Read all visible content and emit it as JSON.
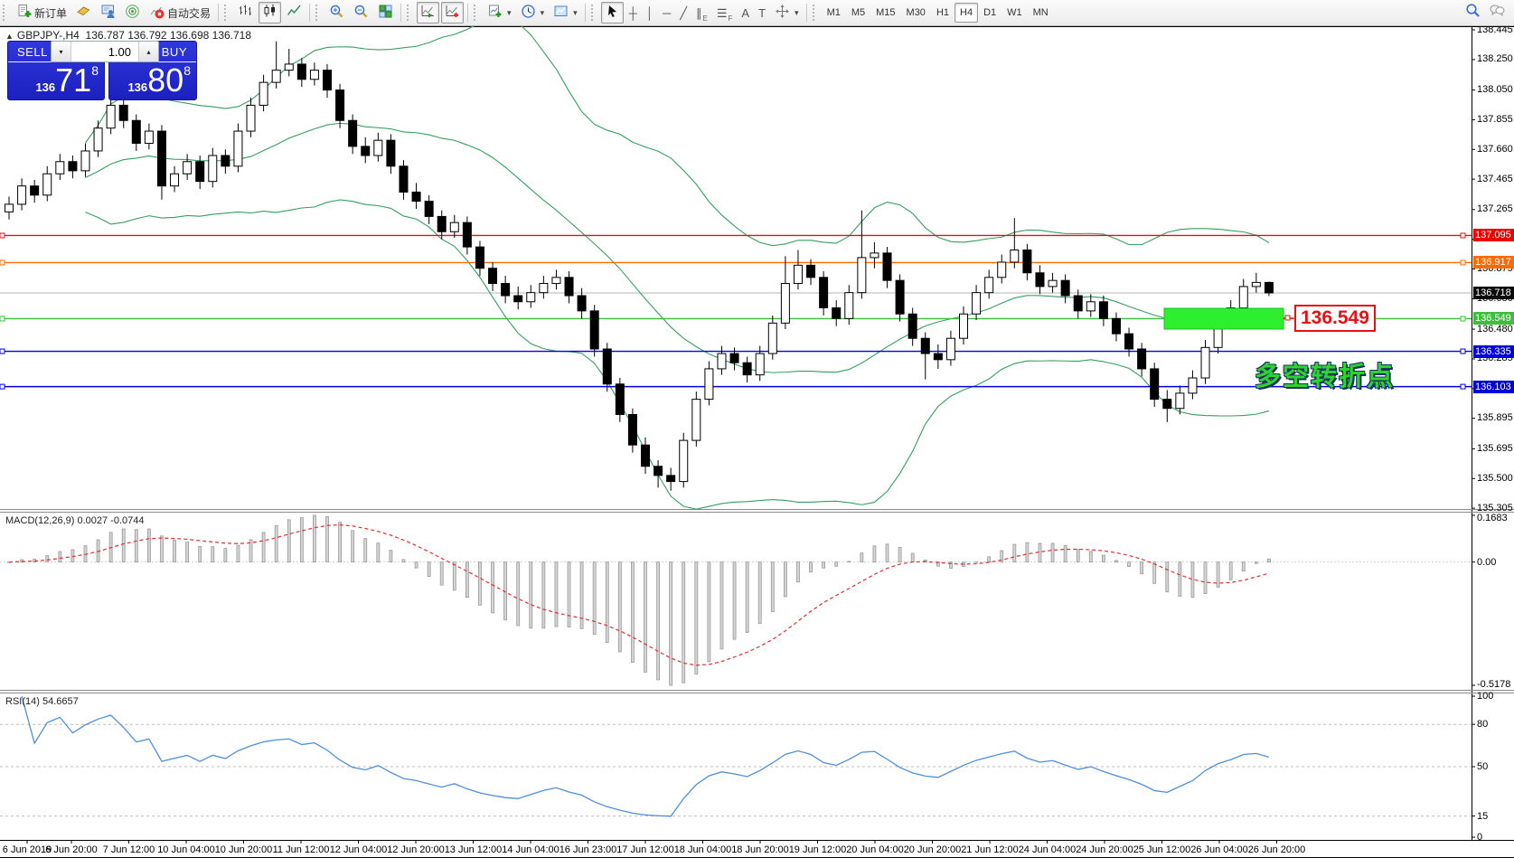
{
  "toolbar": {
    "caret": "▾",
    "up_glyph": "▴",
    "down_glyph": "▾",
    "groups": [
      {
        "items": [
          {
            "name": "new-order-button",
            "icon": "doc-plus",
            "label": "新订单"
          },
          {
            "name": "market-watch-button",
            "icon": "gold-box"
          },
          {
            "name": "data-window-button",
            "icon": "person-board"
          },
          {
            "name": "signals-button",
            "icon": "radio"
          },
          {
            "name": "autotrading-button",
            "icon": "autotrade",
            "label": "自动交易"
          }
        ]
      },
      {
        "items": [
          {
            "name": "bar-chart-button",
            "icon": "bars"
          },
          {
            "name": "candlestick-chart-button",
            "icon": "candles",
            "pressed": true
          },
          {
            "name": "line-chart-button",
            "icon": "linechart"
          }
        ]
      },
      {
        "items": [
          {
            "name": "zoom-in-button",
            "icon": "zoom-in"
          },
          {
            "name": "zoom-out-button",
            "icon": "zoom-out"
          },
          {
            "name": "tile-windows-button",
            "icon": "tile"
          }
        ]
      },
      {
        "items": [
          {
            "name": "auto-scroll-button",
            "icon": "autoscroll",
            "pressed": true
          },
          {
            "name": "chart-shift-button",
            "icon": "shift",
            "pressed": true
          }
        ]
      },
      {
        "items": [
          {
            "name": "new-chart-button",
            "icon": "newchart",
            "dropdown": true
          },
          {
            "name": "period-clock-button",
            "icon": "clock",
            "dropdown": true
          },
          {
            "name": "templates-button",
            "icon": "template",
            "dropdown": true
          }
        ]
      },
      {
        "items": [
          {
            "name": "cursor-button",
            "icon": "cursor",
            "pressed": true
          },
          {
            "name": "crosshair-button",
            "glyph": "┼"
          },
          {
            "name": "vertical-line-button",
            "glyph": "│"
          },
          {
            "name": "horizontal-line-button",
            "glyph": "─"
          },
          {
            "name": "trendline-button",
            "glyph": "╱"
          },
          {
            "name": "channel-button",
            "glyph": "∥",
            "sub": "E"
          },
          {
            "name": "fibonacci-button",
            "glyph": "☰",
            "sub": "F"
          },
          {
            "name": "text-button",
            "glyph": "A"
          },
          {
            "name": "text-label-button",
            "glyph": "T"
          },
          {
            "name": "arrows-button",
            "icon": "arrows",
            "dropdown": true
          }
        ]
      }
    ],
    "timeframes": [
      "M1",
      "M5",
      "M15",
      "M30",
      "H1",
      "H4",
      "D1",
      "W1",
      "MN"
    ],
    "active_timeframe": "H4",
    "right_icons": [
      {
        "name": "search-icon",
        "icon": "search"
      },
      {
        "name": "community-chat-icon",
        "icon": "chat"
      }
    ]
  },
  "header": {
    "collapse_glyph": "▲",
    "title": "GBPJPY-,H4",
    "ohlc": "136.787 136.792 136.698 136.718"
  },
  "trade": {
    "sell_label": "SELL",
    "buy_label": "BUY",
    "volume": "1.00",
    "sell": {
      "prefix": "136",
      "big": "71",
      "sup": "8"
    },
    "buy": {
      "prefix": "136",
      "big": "80",
      "sup": "8"
    }
  },
  "panels": {
    "macd": {
      "label": "MACD(12,26,9) 0.0027 -0.0744",
      "axis": [
        {
          "v": 0.1683,
          "label": "0.1683"
        },
        {
          "v": 0,
          "label": "0.00"
        },
        {
          "v": -0.5178,
          "label": "-0.5178"
        }
      ]
    },
    "rsi": {
      "label": "RSI(14) 54.6657",
      "axis": [
        {
          "v": 100,
          "label": "100"
        },
        {
          "v": 80,
          "label": "80"
        },
        {
          "v": 50,
          "label": "50"
        },
        {
          "v": 15,
          "label": "15"
        },
        {
          "v": 0,
          "label": "0"
        }
      ],
      "dashed_levels": [
        80,
        50,
        15
      ]
    }
  },
  "annotations": {
    "price_tag": "136.549",
    "note": "多空转折点",
    "green_box_color": "#2eef2e",
    "tag_color": "#e81010"
  },
  "lines": [
    {
      "price": 137.095,
      "label": "137.095",
      "color": "#ee1111",
      "flag_bg": "#ee0000"
    },
    {
      "price": 136.917,
      "label": "136.917",
      "color": "#ff6a00",
      "flag_bg": "#ff6a00"
    },
    {
      "price": 136.549,
      "label": "136.549",
      "color": "#35c435",
      "flag_bg": "#3dbf3d"
    },
    {
      "price": 136.335,
      "label": "136.335",
      "color": "#0000ee",
      "flag_bg": "#0000dd"
    },
    {
      "price": 136.103,
      "label": "136.103",
      "color": "#0000ee",
      "flag_bg": "#0000dd"
    }
  ],
  "current_price": {
    "value": 136.718,
    "label": "136.718",
    "flag_bg": "#0a0a0a",
    "line_color": "#b4b4b4"
  },
  "chart_data": {
    "type": "candlestick",
    "symbol": "GBPJPY-",
    "timeframe": "H4",
    "ohlc_current": {
      "open": 136.787,
      "high": 136.792,
      "low": 136.698,
      "close": 136.718
    },
    "y_axis_ticks": [
      "138.445",
      "138.250",
      "138.050",
      "137.855",
      "137.660",
      "137.465",
      "137.265",
      "137.070",
      "136.875",
      "136.680",
      "136.480",
      "136.285",
      "136.090",
      "135.895",
      "135.695",
      "135.500",
      "135.305"
    ],
    "x_axis_labels": [
      "6 Jun 2019",
      "6 Jun 20:00",
      "7 Jun 12:00",
      "10 Jun 04:00",
      "10 Jun 20:00",
      "11 Jun 12:00",
      "12 Jun 04:00",
      "12 Jun 20:00",
      "13 Jun 12:00",
      "14 Jun 04:00",
      "16 Jun 23:00",
      "17 Jun 12:00",
      "18 Jun 04:00",
      "18 Jun 20:00",
      "19 Jun 12:00",
      "20 Jun 04:00",
      "20 Jun 20:00",
      "21 Jun 12:00",
      "24 Jun 04:00",
      "24 Jun 20:00",
      "25 Jun 12:00",
      "26 Jun 04:00",
      "26 Jun 20:00"
    ],
    "indicators": [
      {
        "name": "Bollinger Bands",
        "period": 20,
        "deviation": 2,
        "color": "#35a05e"
      },
      {
        "name": "MACD",
        "fast": 12,
        "slow": 26,
        "signal": 9,
        "main": 0.0027,
        "signal_value": -0.0744
      },
      {
        "name": "RSI",
        "period": 14,
        "value": 54.6657,
        "color": "#4f8fdd"
      }
    ],
    "candles": [
      [
        137.25,
        137.35,
        137.2,
        137.3
      ],
      [
        137.3,
        137.47,
        137.26,
        137.42
      ],
      [
        137.42,
        137.46,
        137.31,
        137.36
      ],
      [
        137.36,
        137.55,
        137.32,
        137.5
      ],
      [
        137.5,
        137.63,
        137.46,
        137.58
      ],
      [
        137.58,
        137.62,
        137.47,
        137.52
      ],
      [
        137.52,
        137.7,
        137.48,
        137.65
      ],
      [
        137.65,
        137.85,
        137.61,
        137.8
      ],
      [
        137.8,
        138.06,
        137.76,
        137.95
      ],
      [
        137.95,
        138.0,
        137.8,
        137.85
      ],
      [
        137.85,
        137.89,
        137.65,
        137.7
      ],
      [
        137.7,
        137.83,
        137.66,
        137.78
      ],
      [
        137.78,
        137.82,
        137.33,
        137.42
      ],
      [
        137.42,
        137.55,
        137.38,
        137.5
      ],
      [
        137.5,
        137.63,
        137.46,
        137.58
      ],
      [
        137.58,
        137.62,
        137.4,
        137.45
      ],
      [
        137.45,
        137.67,
        137.41,
        137.62
      ],
      [
        137.62,
        137.66,
        137.5,
        137.55
      ],
      [
        137.55,
        137.83,
        137.51,
        137.78
      ],
      [
        137.78,
        138.0,
        137.74,
        137.95
      ],
      [
        137.95,
        138.15,
        137.91,
        138.1
      ],
      [
        138.1,
        138.37,
        138.06,
        138.18
      ],
      [
        138.18,
        138.32,
        138.14,
        138.22
      ],
      [
        138.22,
        138.26,
        138.07,
        138.12
      ],
      [
        138.12,
        138.23,
        138.08,
        138.18
      ],
      [
        138.18,
        138.22,
        138.0,
        138.05
      ],
      [
        138.05,
        138.09,
        137.8,
        137.85
      ],
      [
        137.85,
        137.89,
        137.63,
        137.68
      ],
      [
        137.68,
        137.74,
        137.57,
        137.62
      ],
      [
        137.62,
        137.77,
        137.58,
        137.72
      ],
      [
        137.72,
        137.76,
        137.5,
        137.55
      ],
      [
        137.55,
        137.59,
        137.33,
        137.38
      ],
      [
        137.38,
        137.44,
        137.27,
        137.32
      ],
      [
        137.32,
        137.36,
        137.17,
        137.22
      ],
      [
        137.22,
        137.26,
        137.07,
        137.12
      ],
      [
        137.12,
        137.23,
        137.08,
        137.18
      ],
      [
        137.18,
        137.22,
        136.97,
        137.02
      ],
      [
        137.02,
        137.06,
        136.83,
        136.88
      ],
      [
        136.88,
        136.92,
        136.73,
        136.78
      ],
      [
        136.78,
        136.83,
        136.65,
        136.7
      ],
      [
        136.7,
        136.76,
        136.61,
        136.66
      ],
      [
        136.66,
        136.77,
        136.62,
        136.72
      ],
      [
        136.72,
        136.83,
        136.68,
        136.78
      ],
      [
        136.78,
        136.87,
        136.74,
        136.82
      ],
      [
        136.82,
        136.86,
        136.65,
        136.7
      ],
      [
        136.7,
        136.75,
        136.55,
        136.6
      ],
      [
        136.6,
        136.64,
        136.3,
        136.35
      ],
      [
        136.35,
        136.39,
        136.07,
        136.12
      ],
      [
        136.12,
        136.16,
        135.87,
        135.92
      ],
      [
        135.92,
        135.96,
        135.67,
        135.72
      ],
      [
        135.72,
        135.77,
        135.53,
        135.58
      ],
      [
        135.58,
        135.62,
        135.44,
        135.52
      ],
      [
        135.52,
        135.57,
        135.42,
        135.48
      ],
      [
        135.48,
        135.8,
        135.44,
        135.75
      ],
      [
        135.75,
        136.07,
        135.71,
        136.02
      ],
      [
        136.02,
        136.27,
        135.98,
        136.22
      ],
      [
        136.22,
        136.37,
        136.18,
        136.32
      ],
      [
        136.32,
        136.36,
        136.21,
        136.26
      ],
      [
        136.26,
        136.3,
        136.13,
        136.18
      ],
      [
        136.18,
        136.37,
        136.14,
        136.32
      ],
      [
        136.32,
        136.57,
        136.28,
        136.52
      ],
      [
        136.52,
        136.96,
        136.48,
        136.78
      ],
      [
        136.78,
        137.0,
        136.74,
        136.9
      ],
      [
        136.9,
        136.94,
        136.77,
        136.82
      ],
      [
        136.82,
        136.86,
        136.57,
        136.62
      ],
      [
        136.62,
        136.67,
        136.5,
        136.55
      ],
      [
        136.55,
        136.77,
        136.51,
        136.72
      ],
      [
        136.72,
        137.26,
        136.68,
        136.95
      ],
      [
        136.95,
        137.05,
        136.88,
        136.98
      ],
      [
        136.98,
        137.02,
        136.75,
        136.8
      ],
      [
        136.8,
        136.84,
        136.53,
        136.58
      ],
      [
        136.58,
        136.62,
        136.37,
        136.42
      ],
      [
        136.42,
        136.46,
        136.15,
        136.32
      ],
      [
        136.32,
        136.38,
        136.22,
        136.28
      ],
      [
        136.28,
        136.47,
        136.24,
        136.42
      ],
      [
        136.42,
        136.63,
        136.38,
        136.58
      ],
      [
        136.58,
        136.77,
        136.54,
        136.72
      ],
      [
        136.72,
        136.87,
        136.68,
        136.82
      ],
      [
        136.82,
        136.97,
        136.78,
        136.92
      ],
      [
        136.92,
        137.21,
        136.88,
        137.0
      ],
      [
        137.0,
        137.04,
        136.8,
        136.85
      ],
      [
        136.85,
        136.9,
        136.71,
        136.76
      ],
      [
        136.76,
        136.85,
        136.72,
        136.8
      ],
      [
        136.8,
        136.84,
        136.65,
        136.7
      ],
      [
        136.7,
        136.74,
        136.55,
        136.6
      ],
      [
        136.6,
        136.71,
        136.56,
        136.66
      ],
      [
        136.66,
        136.7,
        136.5,
        136.55
      ],
      [
        136.55,
        136.59,
        136.4,
        136.45
      ],
      [
        136.45,
        136.49,
        136.3,
        136.35
      ],
      [
        136.35,
        136.39,
        136.17,
        136.22
      ],
      [
        136.22,
        136.26,
        135.97,
        136.02
      ],
      [
        136.02,
        136.08,
        135.87,
        135.96
      ],
      [
        135.96,
        136.11,
        135.92,
        136.06
      ],
      [
        136.06,
        136.21,
        136.02,
        136.16
      ],
      [
        136.16,
        136.41,
        136.12,
        136.36
      ],
      [
        136.36,
        136.57,
        136.32,
        136.52
      ],
      [
        136.52,
        136.67,
        136.48,
        136.62
      ],
      [
        136.62,
        136.81,
        136.58,
        136.76
      ],
      [
        136.76,
        136.85,
        136.72,
        136.787
      ],
      [
        136.787,
        136.792,
        136.698,
        136.718
      ]
    ]
  }
}
